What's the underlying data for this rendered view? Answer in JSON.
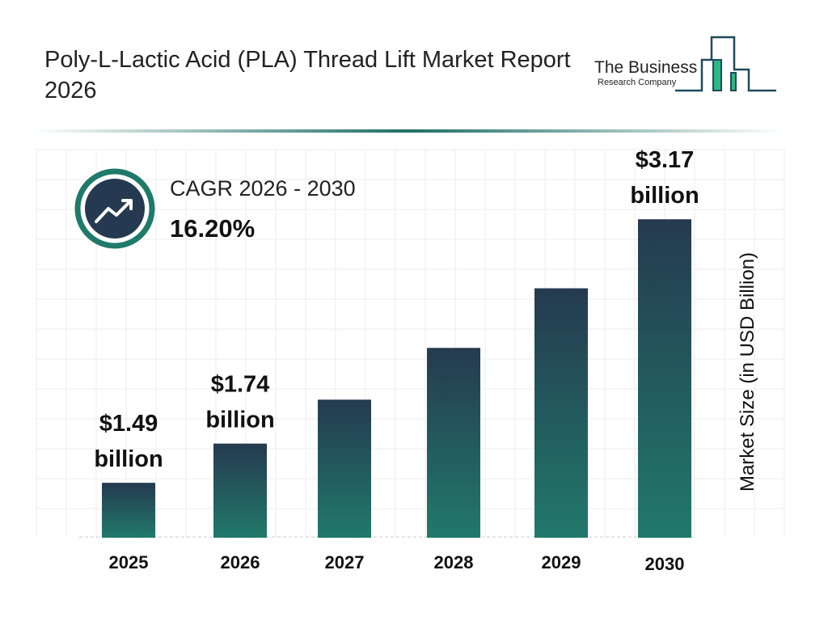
{
  "header": {
    "title": "Poly-L-Lactic Acid (PLA) Thread Lift Market Report 2026"
  },
  "logo": {
    "line1": "The Business",
    "line2": "Research Company"
  },
  "cagr": {
    "label": "CAGR 2026 - 2030",
    "value": "16.20%",
    "icon": "trending-up-icon"
  },
  "colors": {
    "bar_top": "#253a50",
    "bar_bottom": "#21796a",
    "accent": "#1f7a6a",
    "logo_green": "#2bb886"
  },
  "chart_data": {
    "type": "bar",
    "categories": [
      "2025",
      "2026",
      "2027",
      "2028",
      "2029",
      "2030"
    ],
    "values": [
      1.49,
      1.74,
      2.02,
      2.35,
      2.73,
      3.17
    ],
    "data_labels": [
      {
        "index": 0,
        "amount": "$1.49",
        "unit": "billion"
      },
      {
        "index": 1,
        "amount": "$1.74",
        "unit": "billion"
      },
      {
        "index": 5,
        "amount": "$3.17",
        "unit": "billion"
      }
    ],
    "ylabel": "Market Size (in USD Billion)",
    "xlabel": "",
    "grid": true,
    "legend": "none"
  }
}
